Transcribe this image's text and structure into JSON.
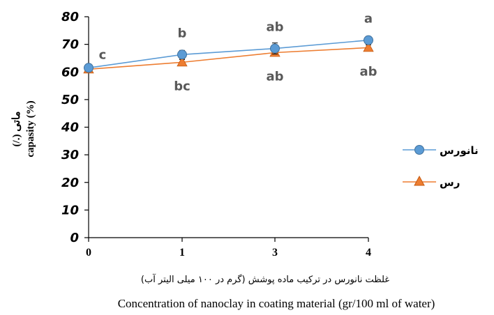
{
  "chart_data": {
    "type": "line",
    "categories": [
      "0",
      "1",
      "3",
      "4"
    ],
    "ylim": [
      0,
      80
    ],
    "yticks": [
      "0",
      "10",
      "20",
      "30",
      "40",
      "50",
      "60",
      "70",
      "80"
    ],
    "ylabel_fa": "ماتی (./)",
    "ylabel_en": "capasity (%)",
    "xlabel_fa": "غلظت نانورس در ترکیب ماده پوشش (گرم در ۱۰۰ میلی الیتر آب)",
    "xlabel_en": "Concentration of nanoclay in coating material (gr/100 ml of water)",
    "grid": false,
    "legend_position": "right",
    "series": [
      {
        "name": "نانورس",
        "color": "#5B9BD5",
        "marker": "circle",
        "values": [
          61.5,
          66.3,
          68.5,
          71.5
        ],
        "errors": [
          1.2,
          1.5,
          2.0,
          1.0
        ],
        "labels": [
          "c",
          "b",
          "ab",
          "a"
        ],
        "label_side": "above"
      },
      {
        "name": "رس",
        "color": "#ED7D31",
        "marker": "triangle",
        "values": [
          61.0,
          63.5,
          67.0,
          68.8
        ],
        "errors": [
          1.0,
          1.0,
          1.0,
          1.0
        ],
        "labels": [
          "",
          "bc",
          "ab",
          "ab"
        ],
        "label_side": "below"
      }
    ]
  }
}
